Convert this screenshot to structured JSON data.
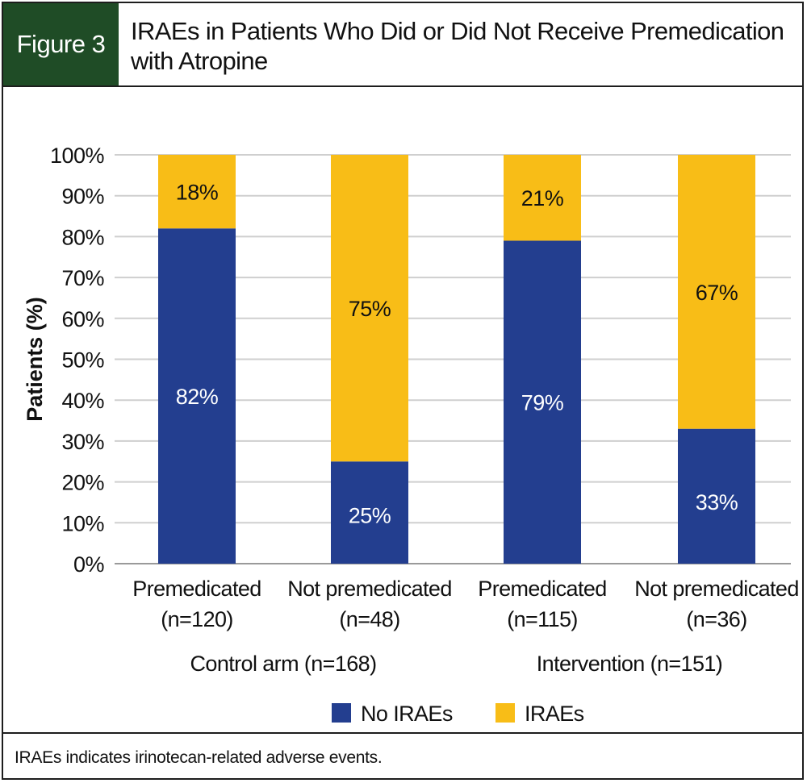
{
  "header": {
    "figure_label": "Figure 3",
    "title": "IRAEs in Patients Who Did or Did Not Receive Premedication with Atropine"
  },
  "footer": {
    "note": "IRAEs indicates irinotecan-related adverse events."
  },
  "colors": {
    "no_iraes": "#233e8f",
    "iraes": "#f8bd17",
    "grid": "#cfcfcf",
    "badge": "#1f4c26"
  },
  "chart_data": {
    "type": "bar",
    "stacked": true,
    "title": "IRAEs in Patients Who Did or Did Not Receive Premedication with Atropine",
    "ylabel": "Patients (%)",
    "ylim": [
      0,
      100
    ],
    "yticks": [
      "0%",
      "10%",
      "20%",
      "30%",
      "40%",
      "50%",
      "60%",
      "70%",
      "80%",
      "90%",
      "100%"
    ],
    "grid": true,
    "categories": [
      [
        "Premedicated",
        "(n=120)"
      ],
      [
        "Not premedicated",
        "(n=48)"
      ],
      [
        "Premedicated",
        "(n=115)"
      ],
      [
        "Not premedicated",
        "(n=36)"
      ]
    ],
    "groups": [
      {
        "label": "Control arm (n=168)",
        "members": [
          0,
          1
        ]
      },
      {
        "label": "Intervention (n=151)",
        "members": [
          2,
          3
        ]
      }
    ],
    "series": [
      {
        "name": "No IRAEs",
        "values": [
          82,
          25,
          79,
          33
        ],
        "labels": [
          "82%",
          "25%",
          "79%",
          "33%"
        ]
      },
      {
        "name": "IRAEs",
        "values": [
          18,
          75,
          21,
          67
        ],
        "labels": [
          "18%",
          "75%",
          "21%",
          "67%"
        ]
      }
    ],
    "legend": [
      "No IRAEs",
      "IRAEs"
    ],
    "legend_position": "bottom-center"
  }
}
